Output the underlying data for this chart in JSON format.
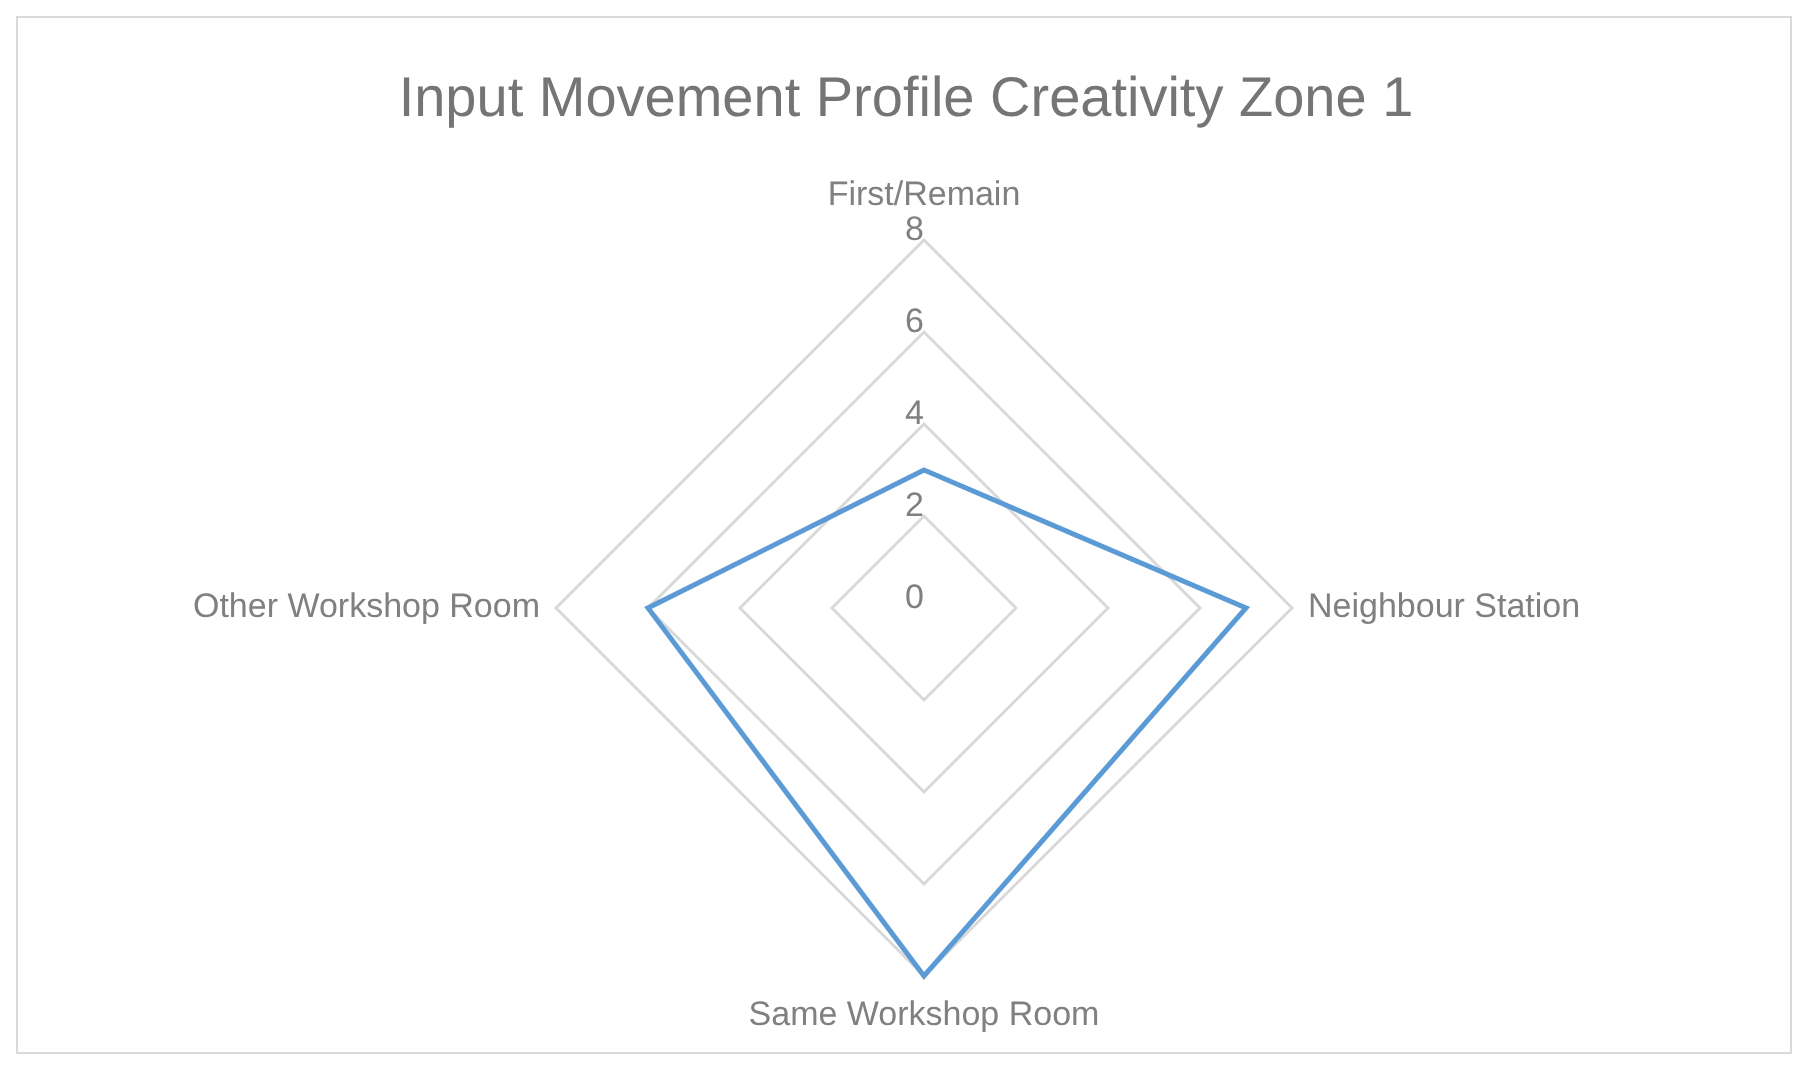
{
  "chart_data": {
    "type": "radar",
    "title": "Input Movement Profile  Creativity Zone 1",
    "categories": [
      "First/Remain",
      "Neighbour Station",
      "Same Workshop Room",
      "Other Workshop Room"
    ],
    "series": [
      {
        "color": "#5b9bd5",
        "values": [
          3,
          7,
          8,
          6
        ]
      }
    ],
    "ylim": [
      0,
      8
    ],
    "yticks": [
      0,
      2,
      4,
      6,
      8
    ],
    "grid": true,
    "legend": false,
    "marker": "none"
  }
}
